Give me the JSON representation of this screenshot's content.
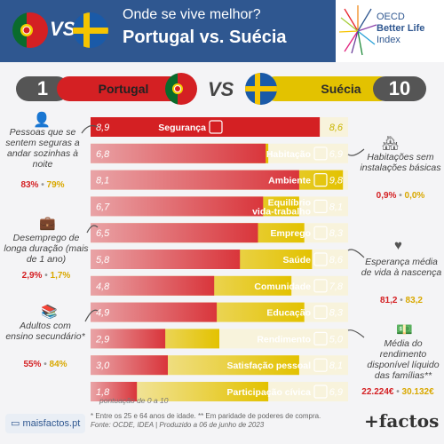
{
  "header": {
    "question": "Onde se vive melhor?",
    "title": "Portugal vs. Suécia",
    "vs": "VS",
    "logo_text": [
      "OECD",
      "Better Life",
      "Index"
    ],
    "header_color": "#2f5790"
  },
  "score_bar": {
    "left_score": "1",
    "left_country": "Portugal",
    "vs": "VS",
    "right_country": "Suécia",
    "right_score": "10"
  },
  "colors": {
    "portugal": "#d42023",
    "suecia": "#e3c200"
  },
  "chart_data": {
    "type": "bar",
    "scale_note": "pontuação de 0 a 10",
    "categories": [
      "Segurança",
      "Habitação",
      "Ambiente",
      "Equilíbrio vida-trabalho",
      "Emprego",
      "Saúde",
      "Comunidade",
      "Educação",
      "Rendimento",
      "Satisfação pessoal",
      "Participação cívica"
    ],
    "series": [
      {
        "name": "Portugal",
        "values": [
          8.9,
          6.8,
          8.1,
          6.7,
          6.5,
          5.8,
          4.8,
          4.9,
          2.9,
          3.0,
          1.8
        ]
      },
      {
        "name": "Suécia",
        "values": [
          8.6,
          6.9,
          9.8,
          8.1,
          8.3,
          8.6,
          7.8,
          8.3,
          5.0,
          8.1,
          6.9
        ]
      }
    ],
    "xlim": [
      0,
      10
    ]
  },
  "labels_display": [
    "Segurança",
    "Habitação",
    "Ambiente",
    "Equilíbrio\nvida-trabalho",
    "Emprego",
    "Saúde",
    "Comunidade",
    "Educação",
    "Rendimento",
    "Satisfação pessoal",
    "Participação cívica"
  ],
  "values_display": {
    "pt": [
      "8,9",
      "6,8",
      "8,1",
      "6,7",
      "6,5",
      "5,8",
      "4,8",
      "4,9",
      "2,9",
      "3,0",
      "1,8"
    ],
    "se": [
      "8,6",
      "6,9",
      "9,8",
      "8,1",
      "8,3",
      "8,6",
      "7,8",
      "8,3",
      "5,0",
      "8,1",
      "6,9"
    ]
  },
  "notes": {
    "safety": {
      "text": "Pessoas que se sentem seguras a andar sozinhas à noite",
      "pt": "83%",
      "se": "79%"
    },
    "housing": {
      "text": "Habitações sem instalações básicas",
      "pt": "0,9%",
      "se": "0,0%"
    },
    "unemployment": {
      "text": "Desemprego de longa duração (mais de 1 ano)",
      "pt": "2,9%",
      "se": "1,7%"
    },
    "life": {
      "text": "Esperança média de vida à nascença",
      "pt": "81,2",
      "se": "83,2"
    },
    "education": {
      "text": "Adultos com ensino secundário*",
      "pt": "55%",
      "se": "84%"
    },
    "income": {
      "text": "Média do rendimento disponível líquido das famílias**",
      "pt": "22.224€",
      "se": "30.132€"
    },
    "sep": "•"
  },
  "footer": {
    "site": "maisfactos.pt",
    "note1": "* Entre os 25 e 64 anos de idade. ** Em paridade de poderes de compra.",
    "note2": "Fonte: OCDE, IDEA | Produzido a 06 de junho de 2023",
    "brand": "+factos"
  }
}
